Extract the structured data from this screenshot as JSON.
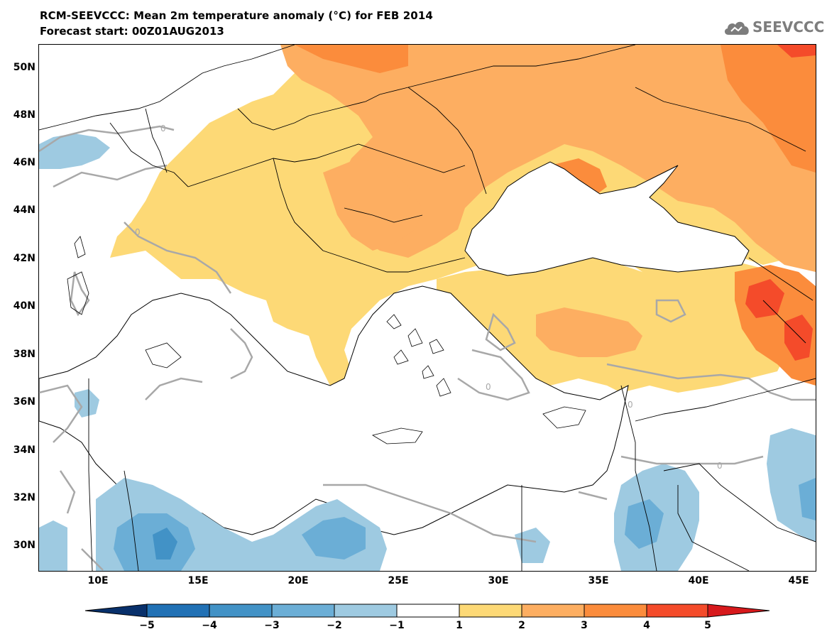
{
  "header": {
    "title": "RCM-SEEVCCC: Mean 2m temperature anomaly (°C) for FEB 2014",
    "subtitle": "Forecast start: 00Z01AUG2013"
  },
  "logo": {
    "icon": "cloud-icon",
    "text": "SEEVCCC"
  },
  "map": {
    "lat_labels": [
      "50N",
      "48N",
      "46N",
      "44N",
      "42N",
      "40N",
      "38N",
      "36N",
      "34N",
      "32N",
      "30N"
    ],
    "lon_labels": [
      "10E",
      "15E",
      "20E",
      "25E",
      "30E",
      "35E",
      "40E",
      "45E"
    ],
    "contour_labels": [
      "0",
      "0",
      "0",
      "0",
      "0"
    ]
  },
  "colorbar": {
    "labels": [
      "−5",
      "−4",
      "−3",
      "−2",
      "−1",
      "1",
      "2",
      "3",
      "4",
      "5"
    ],
    "colors": [
      "#08306b",
      "#2171b5",
      "#4292c6",
      "#6baed6",
      "#9ecae1",
      "#ffffff",
      "#fdd976",
      "#fdae61",
      "#fb8c3c",
      "#f44b2a",
      "#d7191c"
    ]
  },
  "colors": {
    "light_orange": "#fdd976",
    "orange": "#fdae61",
    "dark_orange": "#fb8c3c",
    "red": "#f44b2a",
    "light_blue": "#9ecae1",
    "mid_blue": "#6baed6",
    "blue": "#4292c6",
    "contour": "#a8a8a8"
  }
}
